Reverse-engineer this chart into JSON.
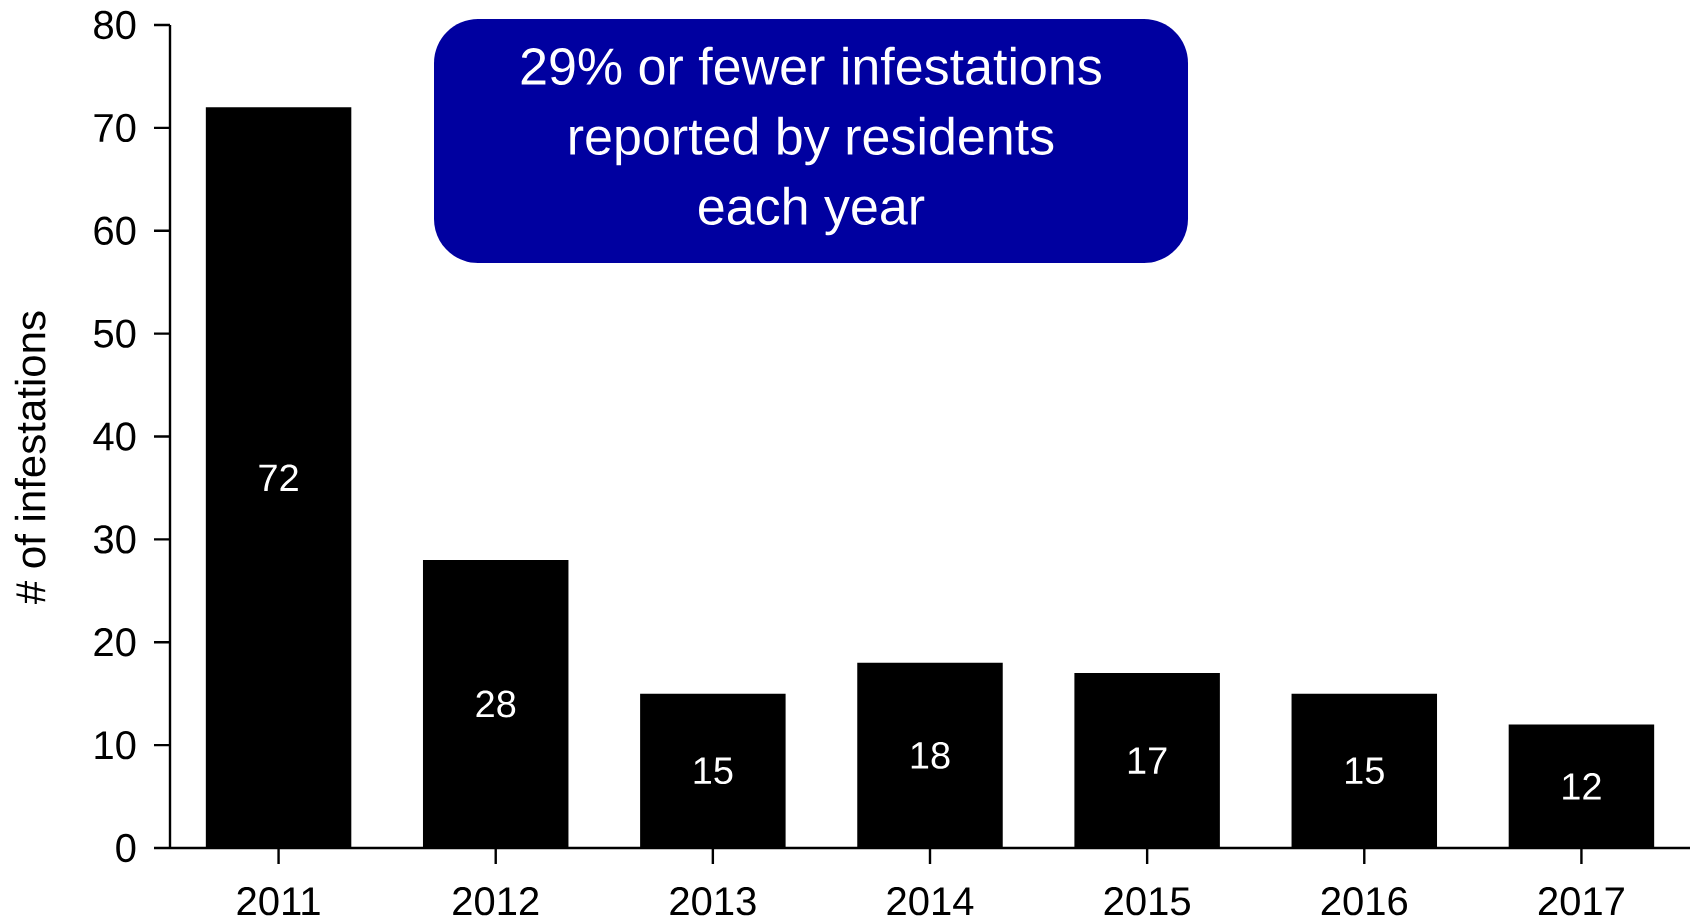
{
  "chart_data": {
    "type": "bar",
    "categories": [
      "2011",
      "2012",
      "2013",
      "2014",
      "2015",
      "2016",
      "2017"
    ],
    "values": [
      72,
      28,
      15,
      18,
      17,
      15,
      12
    ],
    "color": "#000000",
    "ylabel": "# of infestations",
    "ylim": [
      0,
      80
    ],
    "yticks": [
      0,
      10,
      20,
      30,
      40,
      50,
      60,
      70,
      80
    ],
    "data_labels": true,
    "annotations": [
      "29% or fewer infestations reported by residents each year"
    ]
  }
}
